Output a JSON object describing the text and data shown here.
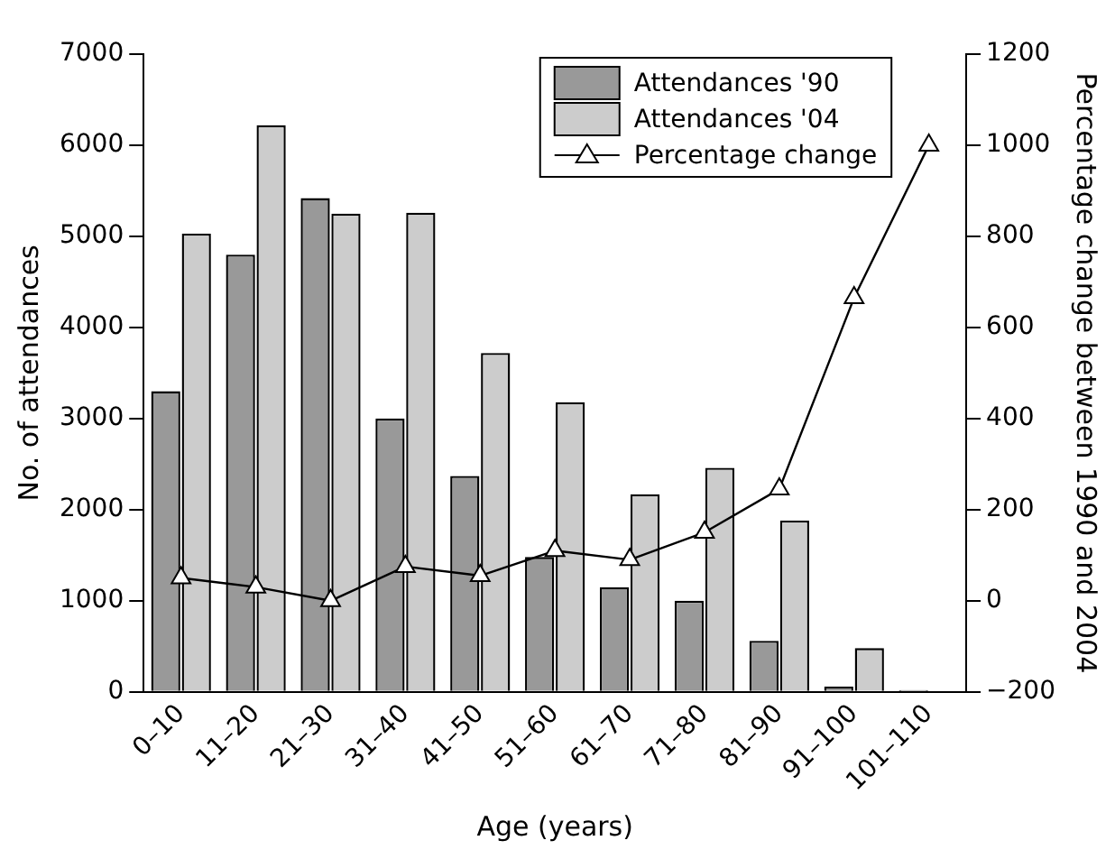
{
  "chart_data": {
    "type": "bar",
    "xlabel": "Age (years)",
    "ylabel": "No. of attendances",
    "y2label": "Percentage change between 1990 and 2004",
    "categories": [
      "0–10",
      "11–20",
      "21–30",
      "31–40",
      "41–50",
      "51–60",
      "61–70",
      "71–80",
      "81–90",
      "91–100",
      "101–110"
    ],
    "series": [
      {
        "name": "Attendances '90",
        "color": "#999999",
        "values": [
          3300,
          4800,
          5420,
          3000,
          2370,
          1480,
          1150,
          1000,
          560,
          60,
          20
        ]
      },
      {
        "name": "Attendances '04",
        "color": "#cccccc",
        "values": [
          5030,
          6220,
          5250,
          5260,
          3720,
          3180,
          2170,
          2460,
          1880,
          480,
          null
        ]
      },
      {
        "name": "Percentage change",
        "type": "line",
        "axis": "y2",
        "color": "#000000",
        "marker": "triangle",
        "values": [
          50,
          30,
          0,
          75,
          55,
          110,
          90,
          150,
          245,
          665,
          1000
        ]
      }
    ],
    "ylim": [
      0,
      7000
    ],
    "yticks": [
      0,
      1000,
      2000,
      3000,
      4000,
      5000,
      6000,
      7000
    ],
    "y2lim": [
      -200,
      1200
    ],
    "y2ticks": [
      -200,
      0,
      200,
      400,
      600,
      800,
      1000,
      1200
    ],
    "grid": false,
    "legend": "top right"
  }
}
